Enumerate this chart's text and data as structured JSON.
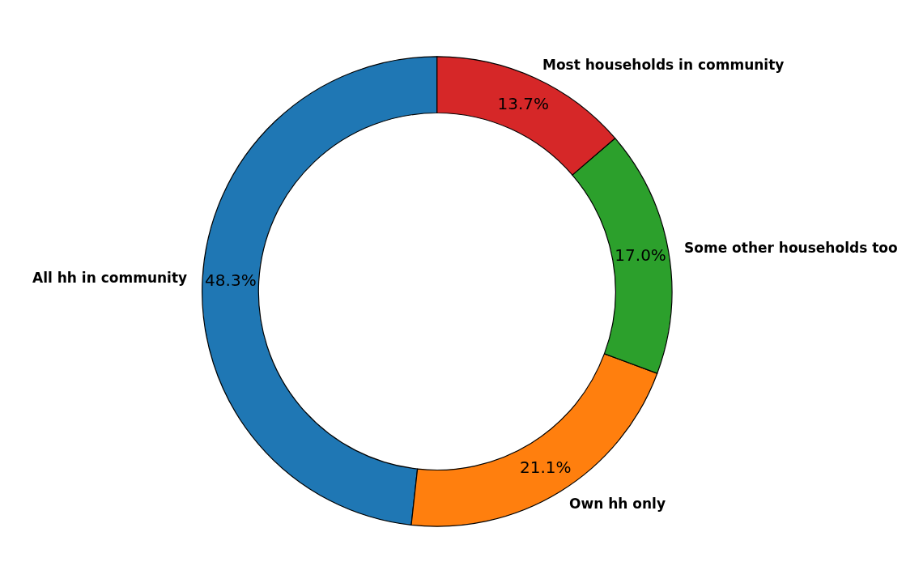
{
  "chart_data": {
    "type": "donut",
    "categories": [
      "All hh in community",
      "Own hh only",
      "Some other households too",
      "Most households in community"
    ],
    "values": [
      48.3,
      21.1,
      17.0,
      13.7
    ],
    "value_labels": [
      "48.3%",
      "21.1%",
      "17.0%",
      "13.7%"
    ],
    "colors": [
      "#1f77b4",
      "#ff7f0e",
      "#2ca02c",
      "#d62728"
    ],
    "legend": false
  }
}
